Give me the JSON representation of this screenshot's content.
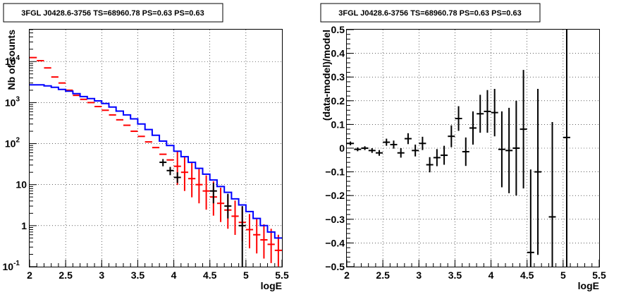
{
  "chart_data": [
    {
      "type": "line",
      "title": "3FGL J0428.6-3756 TS=68960.78 PS=0.63 PS=0.63",
      "xlabel": "logE",
      "ylabel": "Nb of counts",
      "xlim": [
        2,
        5.5
      ],
      "ylim": [
        0.1,
        60000
      ],
      "yscale": "log",
      "grid": true,
      "x_ticks": [
        "2",
        "2.5",
        "3",
        "3.5",
        "4",
        "4.5",
        "5",
        "5.5"
      ],
      "y_ticks": [
        {
          "value": 0.1,
          "base": "10",
          "exp": "-1"
        },
        {
          "value": 1,
          "label": "1"
        },
        {
          "value": 10,
          "label": "10"
        },
        {
          "value": 100,
          "base": "10",
          "exp": "2"
        },
        {
          "value": 1000,
          "base": "10",
          "exp": "3"
        },
        {
          "value": 10000,
          "base": "10",
          "exp": "4"
        }
      ],
      "bin_edges": [
        2.0,
        2.1,
        2.2,
        2.3,
        2.4,
        2.5,
        2.6,
        2.7,
        2.8,
        2.9,
        3.0,
        3.1,
        3.2,
        3.3,
        3.4,
        3.5,
        3.6,
        3.7,
        3.8,
        3.9,
        4.0,
        4.1,
        4.2,
        4.3,
        4.4,
        4.5,
        4.6,
        4.7,
        4.8,
        4.9,
        5.0,
        5.1,
        5.2,
        5.3,
        5.4,
        5.5
      ],
      "series": [
        {
          "color": "#ff0000",
          "role": "red model histogram",
          "values": [
            12500,
            10500,
            7000,
            4200,
            3000,
            2000,
            1500,
            1200,
            1000,
            800,
            650,
            500,
            380,
            280,
            200,
            150,
            110,
            80,
            55,
            40,
            28,
            20,
            14,
            10,
            7,
            5,
            3.5,
            2.4,
            1.7,
            1.2,
            0.8,
            0.6,
            0.45,
            0.35,
            0.25
          ]
        },
        {
          "color": "#0000ff",
          "role": "blue model histogram",
          "values": [
            2700,
            2700,
            2550,
            2350,
            2100,
            1900,
            1650,
            1400,
            1250,
            1100,
            950,
            780,
            620,
            500,
            400,
            300,
            220,
            160,
            115,
            90,
            65,
            48,
            35,
            25,
            18,
            13,
            9,
            6.5,
            4.5,
            3.2,
            2.2,
            1.5,
            1.0,
            0.7,
            0.5
          ]
        },
        {
          "color": "#000000",
          "role": "data points",
          "x": [
            3.85,
            3.95,
            4.05,
            4.55,
            4.75,
            4.95
          ],
          "y": [
            35,
            22,
            15,
            7,
            3,
            1
          ],
          "y_err_low": [
            28,
            17,
            11,
            3.5,
            1.5,
            0.1
          ],
          "y_err_high": [
            42,
            27,
            20,
            11,
            6,
            3
          ]
        }
      ]
    },
    {
      "type": "scatter",
      "title": "3FGL J0428.6-3756 TS=68960.78 PS=0.63 PS=0.63",
      "xlabel": "logE",
      "ylabel": "(data-model)/model",
      "xlim": [
        2,
        5.5
      ],
      "ylim": [
        -0.5,
        0.5
      ],
      "grid": true,
      "x_ticks": [
        "2",
        "2.5",
        "3",
        "3.5",
        "4",
        "4.5",
        "5",
        "5.5"
      ],
      "y_ticks": [
        "0.5",
        "0.4",
        "0.3",
        "0.2",
        "0.1",
        "0",
        "−0.1",
        "−0.2",
        "−0.3",
        "−0.4",
        "−0.5"
      ],
      "y_tick_values": [
        0.5,
        0.4,
        0.3,
        0.2,
        0.1,
        0,
        -0.1,
        -0.2,
        -0.3,
        -0.4,
        -0.5
      ],
      "points": {
        "x": [
          2.05,
          2.15,
          2.25,
          2.35,
          2.45,
          2.55,
          2.65,
          2.75,
          2.85,
          2.95,
          3.05,
          3.15,
          3.25,
          3.35,
          3.45,
          3.55,
          3.65,
          3.75,
          3.85,
          3.95,
          4.05,
          4.15,
          4.25,
          4.35,
          4.45,
          4.55,
          4.65,
          4.85,
          5.05
        ],
        "y": [
          0.02,
          -0.005,
          0.0,
          -0.01,
          -0.02,
          0.025,
          0.015,
          -0.02,
          0.04,
          -0.01,
          0.02,
          -0.07,
          -0.04,
          -0.03,
          0.05,
          0.125,
          -0.015,
          0.085,
          0.145,
          0.155,
          0.15,
          -0.005,
          -0.01,
          0.0,
          0.08,
          -0.44,
          -0.1,
          -0.29,
          0.045
        ],
        "err": [
          0.008,
          0.008,
          0.008,
          0.01,
          0.012,
          0.015,
          0.017,
          0.02,
          0.023,
          0.025,
          0.028,
          0.032,
          0.036,
          0.04,
          0.046,
          0.052,
          0.06,
          0.07,
          0.08,
          0.09,
          0.1,
          0.16,
          0.18,
          0.2,
          0.25,
          0.35,
          0.35,
          0.4,
          0.55
        ]
      }
    }
  ]
}
